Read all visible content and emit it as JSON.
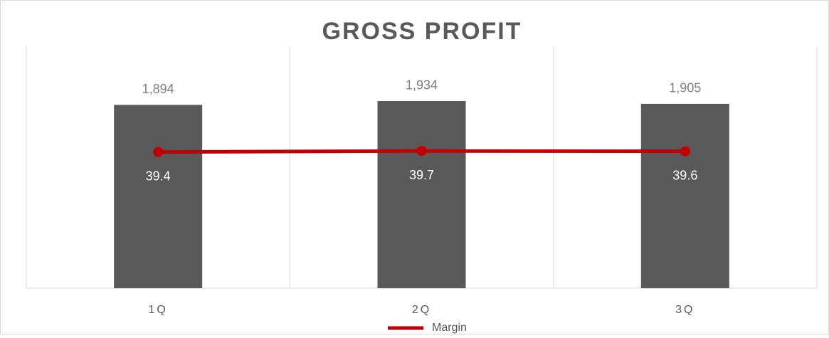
{
  "chart_data": {
    "type": "bar-line",
    "title": "GROSS PROFIT",
    "categories": [
      "1Q",
      "2Q",
      "3Q"
    ],
    "series": [
      {
        "type": "bar",
        "color": "#595959",
        "values": [
          1894,
          1934,
          1905
        ],
        "value_labels": [
          "1,894",
          "1,934",
          "1,905"
        ]
      },
      {
        "type": "line",
        "name": "Margin",
        "color": "#c00000",
        "axis": "y2",
        "values": [
          39.4,
          39.7,
          39.6
        ]
      }
    ],
    "ylim": [
      0,
      2500
    ],
    "y2lim": [
      0,
      70
    ],
    "legend": "bottom"
  }
}
